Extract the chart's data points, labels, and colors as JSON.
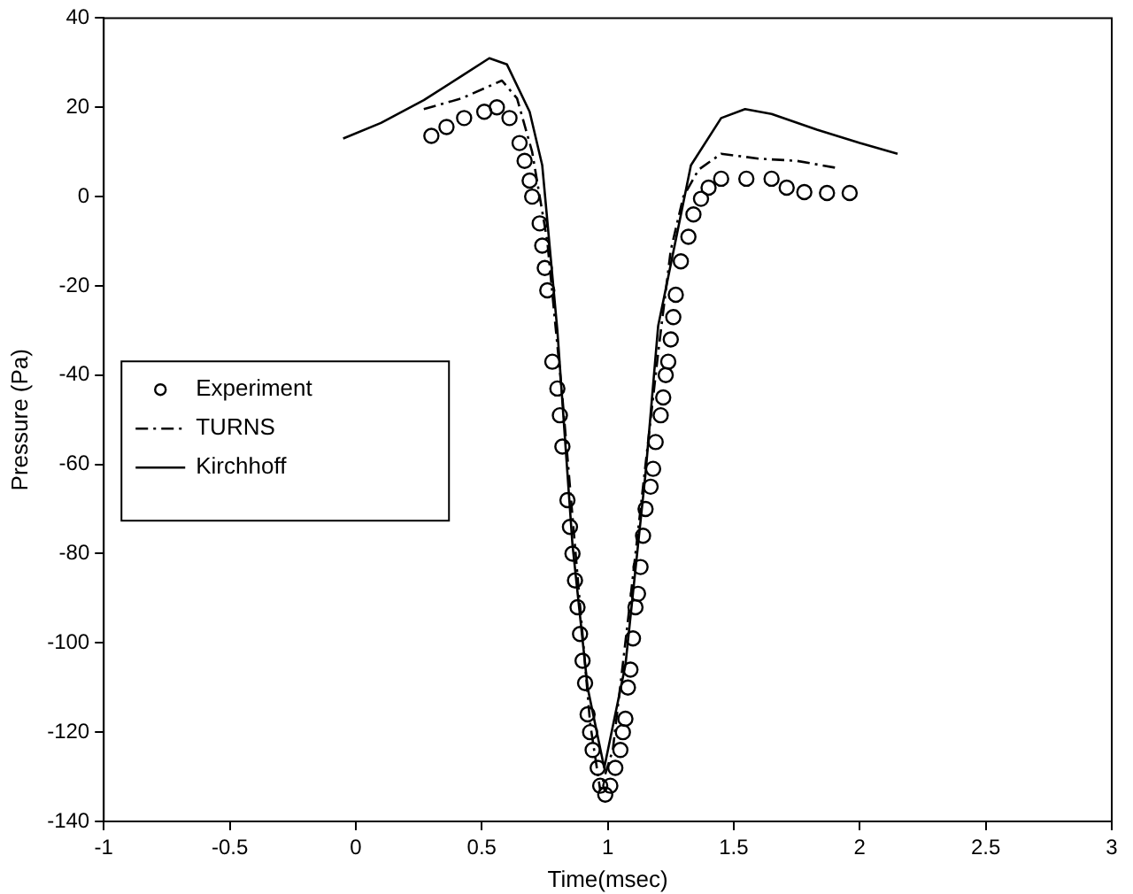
{
  "chart_data": {
    "type": "line",
    "xlabel": "Time(msec)",
    "ylabel": "Pressure (Pa)",
    "xlim": [
      -1,
      3
    ],
    "xticks": [
      -1,
      -0.5,
      0,
      0.5,
      1,
      1.5,
      2,
      2.5,
      3
    ],
    "ylim": [
      -140,
      40
    ],
    "yticks": [
      -140,
      -120,
      -100,
      -80,
      -60,
      -40,
      -20,
      0,
      20,
      40
    ],
    "grid": false,
    "legend": "left",
    "series": [
      {
        "name": "Experiment",
        "type": "scatter",
        "marker": "circle",
        "color": "#000000",
        "x": [
          0.3,
          0.36,
          0.43,
          0.51,
          0.56,
          0.61,
          0.65,
          0.67,
          0.69,
          0.7,
          0.73,
          0.74,
          0.75,
          0.76,
          0.78,
          0.8,
          0.81,
          0.82,
          0.84,
          0.85,
          0.86,
          0.87,
          0.88,
          0.89,
          0.9,
          0.91,
          0.92,
          0.93,
          0.94,
          0.96,
          0.97,
          0.99,
          1.01,
          1.03,
          1.05,
          1.06,
          1.07,
          1.08,
          1.09,
          1.1,
          1.11,
          1.12,
          1.13,
          1.14,
          1.15,
          1.17,
          1.18,
          1.19,
          1.21,
          1.22,
          1.23,
          1.24,
          1.25,
          1.26,
          1.27,
          1.29,
          1.32,
          1.34,
          1.37,
          1.4,
          1.45,
          1.55,
          1.65,
          1.71,
          1.78,
          1.87,
          1.96
        ],
        "values": [
          13.6,
          15.6,
          17.6,
          19,
          20,
          17.6,
          12,
          8,
          3.6,
          0,
          -6,
          -11,
          -16,
          -21,
          -37,
          -43,
          -49,
          -56,
          -68,
          -74,
          -80,
          -86,
          -92,
          -98,
          -104,
          -109,
          -116,
          -120,
          -124,
          -128,
          -132,
          -134,
          -132,
          -128,
          -124,
          -120,
          -117,
          -110,
          -106,
          -99,
          -92,
          -89,
          -83,
          -76,
          -70,
          -65,
          -61,
          -55,
          -49,
          -45,
          -40,
          -37,
          -32,
          -27,
          -22,
          -14.5,
          -9,
          -4,
          -0.5,
          2,
          4,
          4,
          4,
          2,
          1,
          0.8,
          0.8
        ]
      },
      {
        "name": "TURNS",
        "type": "line",
        "line_style": "dashdot",
        "color": "#000000",
        "x": [
          0.27,
          0.42,
          0.58,
          0.64,
          0.7,
          0.76,
          0.82,
          0.88,
          0.93,
          0.97,
          1.02,
          1.08,
          1.14,
          1.2,
          1.25,
          1.3,
          1.36,
          1.45,
          1.6,
          1.75,
          1.91
        ],
        "values": [
          19.6,
          22,
          26,
          22,
          10,
          -10,
          -45,
          -85,
          -118,
          -133,
          -124,
          -95,
          -65,
          -35,
          -12,
          0,
          6,
          9.6,
          8.5,
          8,
          6.4
        ]
      },
      {
        "name": "Kirchhoff",
        "type": "line",
        "line_style": "solid",
        "color": "#000000",
        "x": [
          -0.05,
          0.1,
          0.27,
          0.42,
          0.53,
          0.6,
          0.69,
          0.74,
          0.8,
          0.86,
          0.92,
          0.986,
          1.07,
          1.15,
          1.2,
          1.24,
          1.33,
          1.45,
          1.545,
          1.65,
          1.83,
          2,
          2.15
        ],
        "values": [
          13,
          16.5,
          21.6,
          27,
          31,
          29.6,
          19,
          7,
          -30,
          -78,
          -110,
          -128,
          -105,
          -62,
          -29,
          -18,
          7,
          17.6,
          19.6,
          18.5,
          15,
          12,
          9.6
        ]
      }
    ]
  }
}
